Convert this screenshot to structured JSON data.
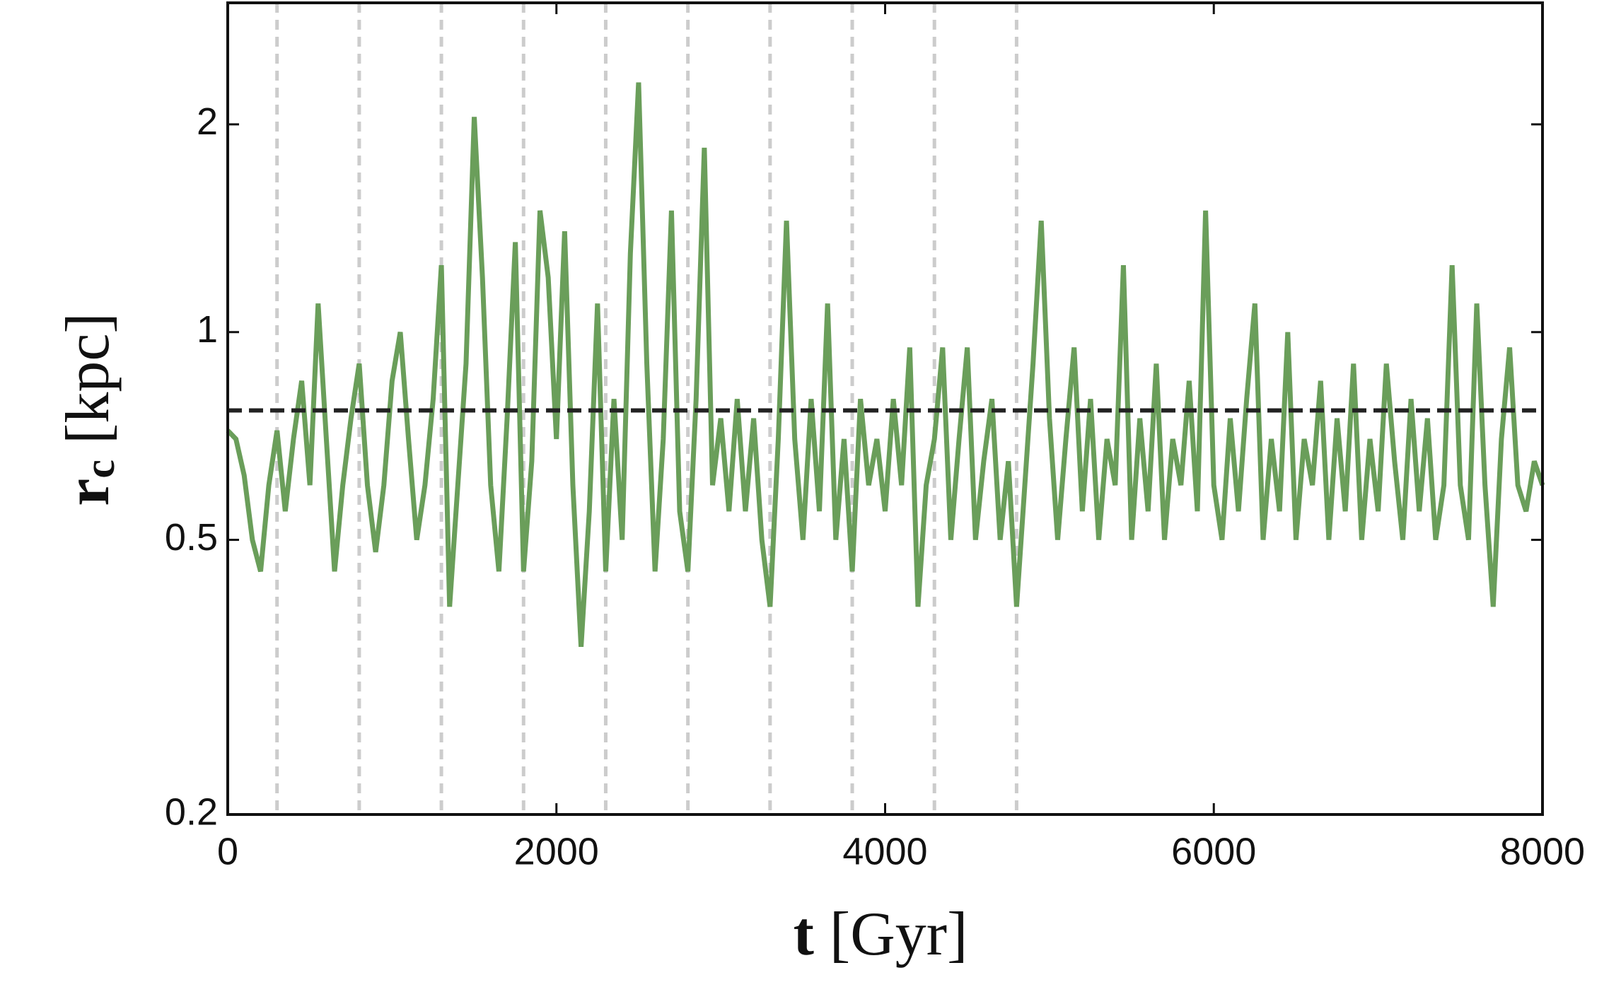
{
  "chart_data": {
    "type": "line",
    "xlabel": {
      "symbol": "t",
      "unit": "[Gyr]"
    },
    "ylabel": {
      "symbol": "r",
      "subscript": "c",
      "unit": "[kpc]"
    },
    "xlim": [
      0,
      8000
    ],
    "xticks": [
      0,
      2000,
      4000,
      6000,
      8000
    ],
    "ylim": [
      0.2,
      3
    ],
    "yticks": [
      0.2,
      0.5,
      1,
      2
    ],
    "log_y": true,
    "vlines": [
      300,
      800,
      1300,
      1800,
      2300,
      2800,
      3300,
      3800,
      4300,
      4800
    ],
    "vline_color": "#cccccc",
    "hline": 0.77,
    "hline_color": "#222222",
    "x": [
      0,
      50,
      100,
      150,
      200,
      250,
      300,
      350,
      400,
      450,
      500,
      550,
      600,
      650,
      700,
      750,
      800,
      850,
      900,
      950,
      1000,
      1050,
      1100,
      1150,
      1200,
      1250,
      1300,
      1350,
      1400,
      1450,
      1500,
      1550,
      1600,
      1650,
      1700,
      1750,
      1800,
      1850,
      1900,
      1950,
      2000,
      2050,
      2100,
      2150,
      2200,
      2250,
      2300,
      2350,
      2400,
      2450,
      2500,
      2550,
      2600,
      2650,
      2700,
      2750,
      2800,
      2850,
      2900,
      2950,
      3000,
      3050,
      3100,
      3150,
      3200,
      3250,
      3300,
      3350,
      3400,
      3450,
      3500,
      3550,
      3600,
      3650,
      3700,
      3750,
      3800,
      3850,
      3900,
      3950,
      4000,
      4050,
      4100,
      4150,
      4200,
      4250,
      4300,
      4350,
      4400,
      4450,
      4500,
      4550,
      4600,
      4650,
      4700,
      4750,
      4800,
      4850,
      4900,
      4950,
      5000,
      5050,
      5100,
      5150,
      5200,
      5250,
      5300,
      5350,
      5400,
      5450,
      5500,
      5550,
      5600,
      5650,
      5700,
      5750,
      5800,
      5850,
      5900,
      5950,
      6000,
      6050,
      6100,
      6150,
      6200,
      6250,
      6300,
      6350,
      6400,
      6450,
      6500,
      6550,
      6600,
      6650,
      6700,
      6750,
      6800,
      6850,
      6900,
      6950,
      7000,
      7050,
      7100,
      7150,
      7200,
      7250,
      7300,
      7350,
      7400,
      7450,
      7500,
      7550,
      7600,
      7650,
      7700,
      7750,
      7800,
      7850,
      7900,
      7950,
      8000
    ],
    "series": [
      {
        "color": "#6a9e5a",
        "values": [
          0.72,
          0.7,
          0.62,
          0.5,
          0.45,
          0.6,
          0.72,
          0.55,
          0.7,
          0.85,
          0.6,
          1.1,
          0.7,
          0.45,
          0.6,
          0.75,
          0.9,
          0.6,
          0.48,
          0.6,
          0.85,
          1.0,
          0.7,
          0.5,
          0.6,
          0.8,
          1.25,
          0.4,
          0.6,
          0.9,
          2.05,
          1.2,
          0.6,
          0.45,
          0.75,
          1.35,
          0.45,
          0.65,
          1.5,
          1.2,
          0.7,
          1.4,
          0.6,
          0.35,
          0.55,
          1.1,
          0.45,
          0.8,
          0.5,
          1.3,
          2.3,
          0.9,
          0.45,
          0.7,
          1.5,
          0.55,
          0.45,
          0.8,
          1.85,
          0.6,
          0.75,
          0.55,
          0.8,
          0.55,
          0.75,
          0.5,
          0.4,
          0.7,
          1.45,
          0.7,
          0.5,
          0.8,
          0.55,
          1.1,
          0.5,
          0.7,
          0.45,
          0.8,
          0.6,
          0.7,
          0.55,
          0.8,
          0.6,
          0.95,
          0.4,
          0.6,
          0.7,
          0.95,
          0.5,
          0.7,
          0.95,
          0.5,
          0.65,
          0.8,
          0.5,
          0.65,
          0.4,
          0.6,
          0.9,
          1.45,
          0.75,
          0.5,
          0.7,
          0.95,
          0.55,
          0.8,
          0.5,
          0.7,
          0.6,
          1.25,
          0.5,
          0.75,
          0.55,
          0.9,
          0.5,
          0.7,
          0.6,
          0.85,
          0.55,
          1.5,
          0.6,
          0.5,
          0.75,
          0.55,
          0.8,
          1.1,
          0.5,
          0.7,
          0.55,
          1.0,
          0.5,
          0.7,
          0.6,
          0.85,
          0.5,
          0.75,
          0.55,
          0.9,
          0.5,
          0.7,
          0.55,
          0.9,
          0.65,
          0.5,
          0.8,
          0.55,
          0.75,
          0.5,
          0.6,
          1.25,
          0.6,
          0.5,
          1.1,
          0.6,
          0.4,
          0.7,
          0.95,
          0.6,
          0.55,
          0.65,
          0.6
        ]
      }
    ]
  }
}
